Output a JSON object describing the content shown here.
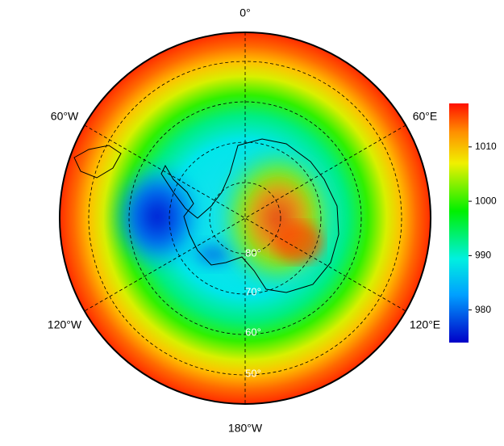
{
  "map": {
    "longitude_labels": [
      "0°",
      "60°E",
      "120°E",
      "180°W",
      "120°W",
      "60°W"
    ],
    "latitude_labels": [
      "80°",
      "70°",
      "60°",
      "50°"
    ]
  },
  "colorbar": {
    "lim": [
      974,
      1018
    ],
    "ticks": [
      980,
      990,
      1000,
      1010
    ]
  }
}
